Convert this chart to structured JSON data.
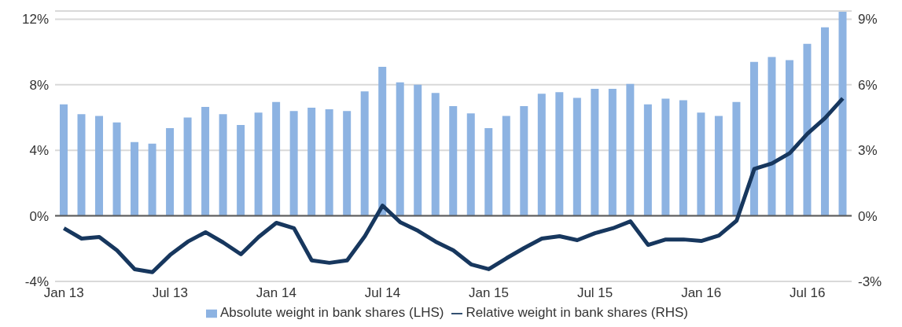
{
  "chart_data": {
    "type": "bar",
    "categories": [
      "Jan 13",
      null,
      null,
      null,
      null,
      null,
      "Jul 13",
      null,
      null,
      null,
      null,
      null,
      "Jan 14",
      null,
      null,
      null,
      null,
      null,
      "Jul 14",
      null,
      null,
      null,
      null,
      null,
      "Jan 15",
      null,
      null,
      null,
      null,
      null,
      "Jul 15",
      null,
      null,
      null,
      null,
      null,
      "Jan 16",
      null,
      null,
      null,
      null,
      null,
      "Jul 16",
      null,
      null
    ],
    "series": [
      {
        "name": "Absolute weight in bank shares (LHS)",
        "color": "#8db3e2",
        "values": [
          6.8,
          6.2,
          6.1,
          5.7,
          4.5,
          4.4,
          5.35,
          6.0,
          6.65,
          6.2,
          5.55,
          6.3,
          6.95,
          6.4,
          6.6,
          6.5,
          6.4,
          7.6,
          9.1,
          8.15,
          8.0,
          7.5,
          6.7,
          6.25,
          5.35,
          6.1,
          6.7,
          7.45,
          7.55,
          7.2,
          7.75,
          7.75,
          8.05,
          6.8,
          7.15,
          7.05,
          6.3,
          6.1,
          6.95,
          9.4,
          9.7,
          9.5,
          10.5,
          11.5,
          12.45
        ]
      },
      {
        "name": "Relative weight in bank shares (RHS)",
        "type": "line",
        "axis": "y2",
        "color": "#17375e",
        "values": [
          -0.57,
          -1.04,
          -0.97,
          -1.58,
          -2.44,
          -2.58,
          -1.79,
          -1.18,
          -0.75,
          -1.22,
          -1.76,
          -0.97,
          -0.32,
          -0.57,
          -2.04,
          -2.15,
          -2.04,
          -0.93,
          0.47,
          -0.29,
          -0.68,
          -1.18,
          -1.58,
          -2.22,
          -2.44,
          -1.94,
          -1.47,
          -1.04,
          -0.93,
          -1.11,
          -0.79,
          -0.57,
          -0.25,
          -1.33,
          -1.08,
          -1.08,
          -1.15,
          -0.9,
          -0.22,
          2.15,
          2.4,
          2.87,
          3.76,
          4.48,
          5.38
        ]
      }
    ],
    "ylim": [
      -4,
      12.5
    ],
    "yticks": [
      {
        "value": -4,
        "label": "-4%"
      },
      {
        "value": 0,
        "label": "0%"
      },
      {
        "value": 4,
        "label": "4%"
      },
      {
        "value": 8,
        "label": "8%"
      },
      {
        "value": 12,
        "label": "12%"
      }
    ],
    "y2lim": [
      -3,
      9.375
    ],
    "y2ticks": [
      {
        "value": -3,
        "label": "-3%"
      },
      {
        "value": 0,
        "label": "0%"
      },
      {
        "value": 3,
        "label": "3%"
      },
      {
        "value": 6,
        "label": "6%"
      },
      {
        "value": 9,
        "label": "9%"
      }
    ],
    "grid": "y",
    "legend": "bottom",
    "marker": "none",
    "line_style": "solid"
  }
}
